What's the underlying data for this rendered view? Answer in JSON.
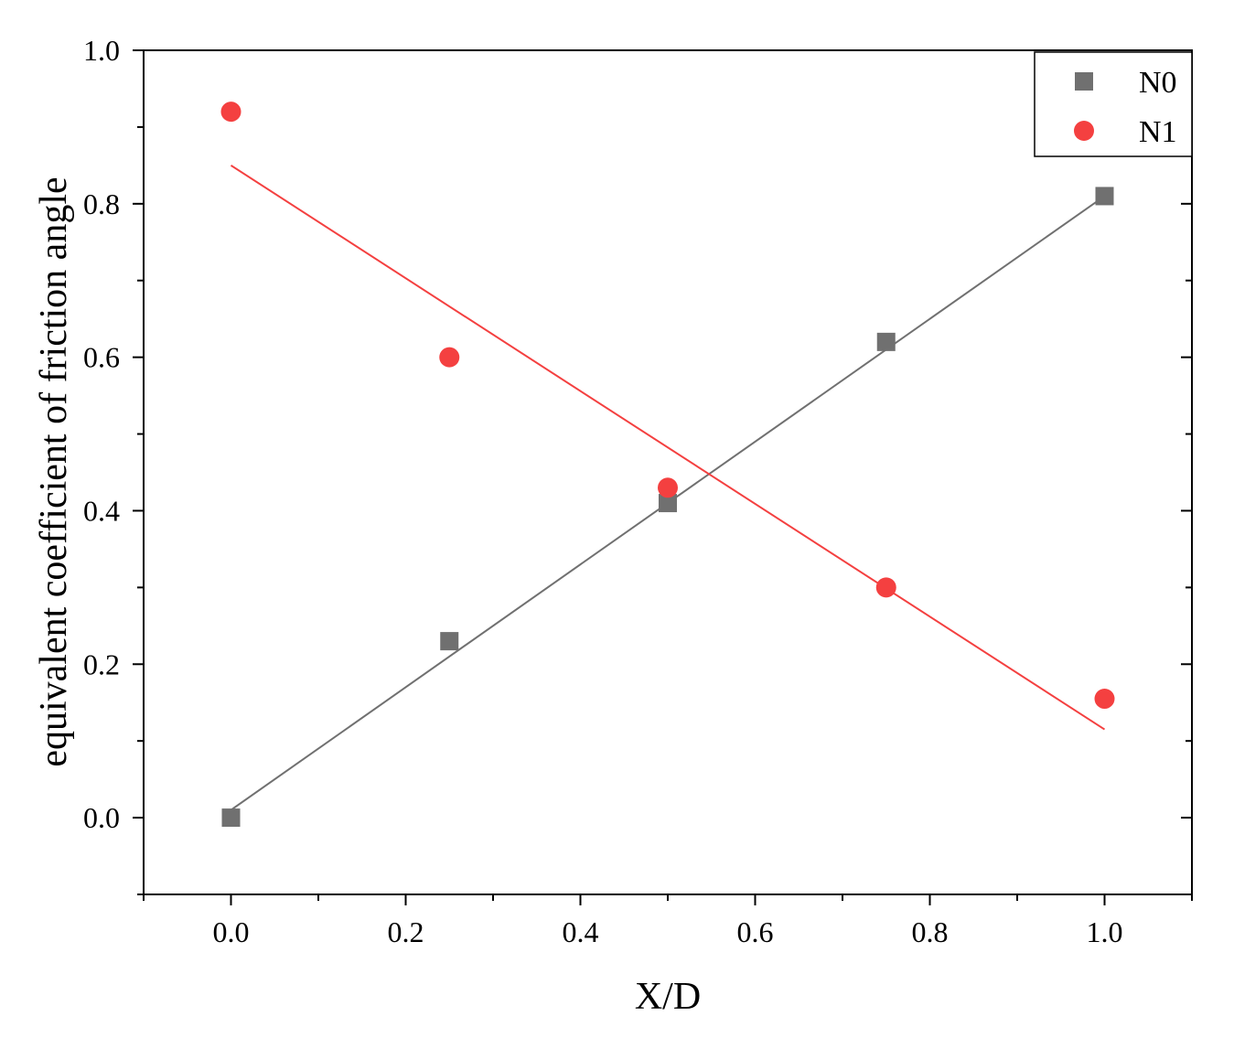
{
  "chart_data": {
    "type": "scatter",
    "xlabel": "X/D",
    "ylabel": "equivalent coefficient of friction angle",
    "xlim": [
      -0.1,
      1.1
    ],
    "ylim": [
      -0.1,
      1.0
    ],
    "xticks": [
      0.0,
      0.2,
      0.4,
      0.6,
      0.8,
      1.0
    ],
    "xtick_labels": [
      "0.0",
      "0.2",
      "0.4",
      "0.6",
      "0.8",
      "1.0"
    ],
    "yticks": [
      0.0,
      0.2,
      0.4,
      0.6,
      0.8,
      1.0
    ],
    "ytick_labels": [
      "0.0",
      "0.2",
      "0.4",
      "0.6",
      "0.8",
      "1.0"
    ],
    "legend_position": "top-right",
    "grid": false,
    "series": [
      {
        "name": "N0",
        "marker": "square",
        "color": "#707070",
        "x": [
          0.0,
          0.25,
          0.5,
          0.75,
          1.0
        ],
        "y": [
          0.0,
          0.23,
          0.41,
          0.62,
          0.81
        ],
        "fit": {
          "x": [
            0.0,
            1.0
          ],
          "y": [
            0.01,
            0.81
          ]
        }
      },
      {
        "name": "N1",
        "marker": "circle",
        "color": "#f44040",
        "x": [
          0.0,
          0.25,
          0.5,
          0.75,
          1.0
        ],
        "y": [
          0.92,
          0.6,
          0.43,
          0.3,
          0.155
        ],
        "fit": {
          "x": [
            0.0,
            1.0
          ],
          "y": [
            0.85,
            0.115
          ]
        }
      }
    ]
  }
}
